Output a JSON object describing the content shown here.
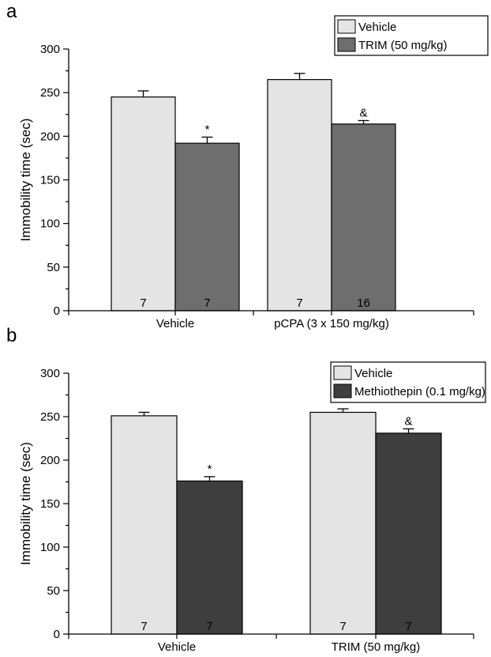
{
  "chart_data": [
    {
      "panel_letter": "a",
      "type": "bar",
      "ylabel": "Immobility time (sec)",
      "ylim": [
        0,
        300
      ],
      "yticks": [
        "0",
        "50",
        "100",
        "150",
        "200",
        "250",
        "300"
      ],
      "categories": [
        "Vehicle",
        "pCPA (3 x 150 mg/kg)"
      ],
      "legend_position": "top-right",
      "series": [
        {
          "name": "Vehicle",
          "color": "#e4e4e4",
          "values": [
            245,
            265
          ],
          "errors": [
            7,
            7
          ],
          "n": [
            "7",
            "7"
          ],
          "marks": [
            "",
            ""
          ]
        },
        {
          "name": "TRIM (50 mg/kg)",
          "color": "#6e6e6e",
          "values": [
            192,
            214
          ],
          "errors": [
            7,
            4
          ],
          "n": [
            "7",
            "16"
          ],
          "marks": [
            "*",
            "&"
          ]
        }
      ]
    },
    {
      "panel_letter": "b",
      "type": "bar",
      "ylabel": "Immobility time (sec)",
      "ylim": [
        0,
        300
      ],
      "yticks": [
        "0",
        "50",
        "100",
        "150",
        "200",
        "250",
        "300"
      ],
      "categories": [
        "Vehicle",
        "TRIM (50 mg/kg)"
      ],
      "legend_position": "top-right",
      "series": [
        {
          "name": "Vehicle",
          "color": "#e4e4e4",
          "values": [
            251,
            255
          ],
          "errors": [
            4,
            4
          ],
          "n": [
            "7",
            "7"
          ],
          "marks": [
            "",
            ""
          ]
        },
        {
          "name": "Methiothepin (0.1 mg/kg)",
          "color": "#3e3e3e",
          "values": [
            176,
            231
          ],
          "errors": [
            5,
            5
          ],
          "n": [
            "7",
            "7"
          ],
          "marks": [
            "*",
            "&"
          ]
        }
      ]
    }
  ]
}
